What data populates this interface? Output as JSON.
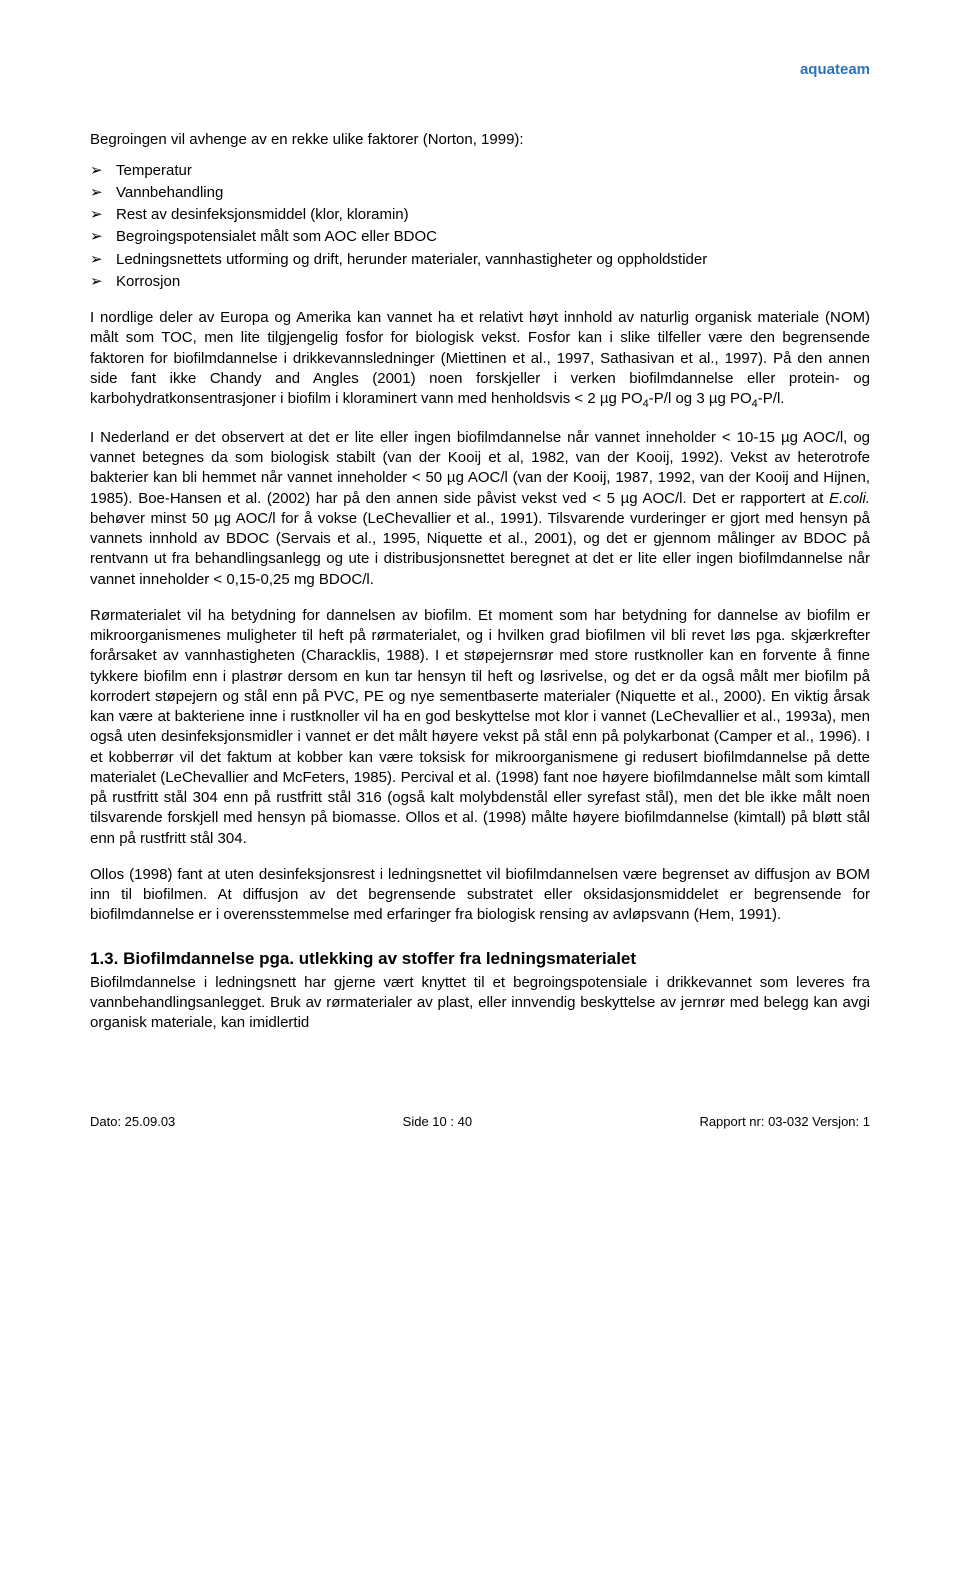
{
  "brand": "aquateam",
  "intro": "Begroingen vil avhenge av en rekke ulike faktorer (Norton, 1999):",
  "bullets": [
    "Temperatur",
    "Vannbehandling",
    "Rest av desinfeksjonsmiddel (klor, kloramin)",
    "Begroingspotensialet målt som AOC eller BDOC",
    "Ledningsnettets utforming og drift, herunder materialer, vannhastigheter og oppholdstider",
    "Korrosjon"
  ],
  "p1_a": "I nordlige deler av Europa og Amerika kan vannet ha et relativt høyt innhold av naturlig organisk materiale (NOM) målt som TOC, men lite tilgjengelig fosfor for biologisk vekst. Fosfor kan i slike tilfeller være den begrensende faktoren for biofilmdannelse i drikkevannsledninger (Miettinen et al., 1997, Sathasivan et al., 1997). På den annen side fant ikke Chandy and Angles (2001) noen forskjeller i verken biofilmdannelse eller protein- og karbohydratkonsentrasjoner i biofilm i kloraminert vann med henholdsvis < 2 µg PO",
  "p1_sub1": "4",
  "p1_b": "-P/l og 3 µg PO",
  "p1_sub2": "4",
  "p1_c": "-P/l.",
  "p2_a": "I Nederland er det observert at det er lite eller ingen biofilmdannelse når vannet inneholder < 10-15 µg AOC/l, og vannet betegnes da som biologisk stabilt (van der Kooij et al, 1982, van der Kooij, 1992). Vekst av heterotrofe bakterier kan bli hemmet når vannet inneholder < 50 µg AOC/l (van der Kooij, 1987, 1992, van der Kooij and Hijnen, 1985). Boe-Hansen et al. (2002) har på den annen side påvist vekst ved < 5 µg AOC/l. Det er rapportert at ",
  "p2_italic": "E.coli.",
  "p2_b": " behøver minst 50 µg AOC/l for å vokse (LeChevallier et al., 1991). Tilsvarende vurderinger er gjort med hensyn på vannets innhold av BDOC (Servais et al., 1995, Niquette et al., 2001), og det er gjennom målinger av BDOC på rentvann ut fra behandlingsanlegg og ute i distribusjonsnettet beregnet at det er lite eller ingen biofilmdannelse når vannet inneholder < 0,15-0,25 mg BDOC/l.",
  "p3": "Rørmaterialet vil ha betydning for dannelsen av biofilm. Et moment som har betydning for dannelse av biofilm er mikroorganismenes muligheter til heft på rørmaterialet, og i hvilken grad biofilmen vil bli revet løs pga. skjærkrefter forårsaket av vannhastigheten (Characklis, 1988). I et støpejernsrør med store rustknoller kan en forvente å finne tykkere biofilm enn i plastrør dersom en kun tar hensyn til heft og løsrivelse, og det er da også målt mer biofilm på korrodert støpejern og stål enn på PVC, PE og nye sementbaserte materialer (Niquette et al., 2000). En viktig årsak kan være at bakteriene inne i rustknoller vil ha en god beskyttelse mot klor i vannet (LeChevallier et al., 1993a), men også uten desinfeksjonsmidler i vannet er det målt høyere vekst på stål enn på polykarbonat (Camper et al., 1996). I et kobberrør vil det faktum at kobber kan være toksisk for mikroorganismene gi redusert biofilmdannelse på dette materialet (LeChevallier and McFeters, 1985). Percival et al. (1998) fant noe høyere biofilmdannelse målt som kimtall på rustfritt stål 304 enn på rustfritt stål 316 (også kalt molybdenstål eller syrefast stål), men det ble ikke målt noen tilsvarende forskjell med hensyn på biomasse. Ollos et al. (1998) målte høyere biofilmdannelse (kimtall) på bløtt stål enn på rustfritt stål 304.",
  "p4": "Ollos (1998) fant at uten desinfeksjonsrest i ledningsnettet vil biofilmdannelsen være begrenset av diffusjon av BOM inn til biofilmen. At diffusjon av det begrensende substratet eller oksidasjonsmiddelet er begrensende for biofilmdannelse er i overensstemmelse med erfaringer fra biologisk rensing av avløpsvann (Hem, 1991).",
  "heading": "1.3.  Biofilmdannelse pga. utlekking av stoffer fra ledningsmaterialet",
  "p5": "Biofilmdannelse i ledningsnett har gjerne vært knyttet til et begroingspotensiale i drikkevannet som leveres fra vannbehandlingsanlegget. Bruk av rørmaterialer av plast, eller innvendig beskyttelse av jernrør med belegg kan avgi organisk materiale, kan imidlertid",
  "footer": {
    "left": "Dato: 25.09.03",
    "center": "Side 10 : 40",
    "right": "Rapport nr: 03-032   Versjon: 1"
  }
}
